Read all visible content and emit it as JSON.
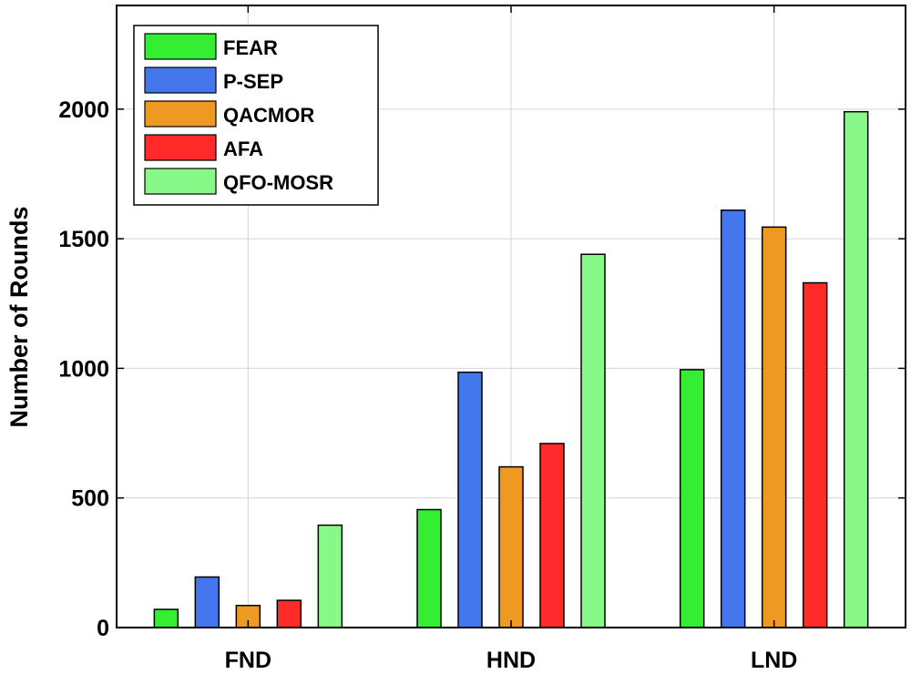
{
  "chart_data": {
    "type": "bar",
    "categories": [
      "FND",
      "HND",
      "LND"
    ],
    "series": [
      {
        "name": "FEAR",
        "color": "#33ee33",
        "values": [
          70,
          455,
          995
        ]
      },
      {
        "name": "P-SEP",
        "color": "#4477ee",
        "values": [
          195,
          985,
          1610
        ]
      },
      {
        "name": "QACMOR",
        "color": "#ee9922",
        "values": [
          85,
          620,
          1545
        ]
      },
      {
        "name": "AFA",
        "color": "#ff2a2a",
        "values": [
          105,
          710,
          1330
        ]
      },
      {
        "name": "QFO-MOSR",
        "color": "#88f888",
        "values": [
          395,
          1440,
          1990
        ]
      }
    ],
    "title": "",
    "xlabel": "",
    "ylabel": "Number of Rounds",
    "ylim": [
      0,
      2400
    ],
    "yticks": [
      0,
      500,
      1000,
      1500,
      2000
    ],
    "grid": true,
    "legend_position": "top-left"
  }
}
